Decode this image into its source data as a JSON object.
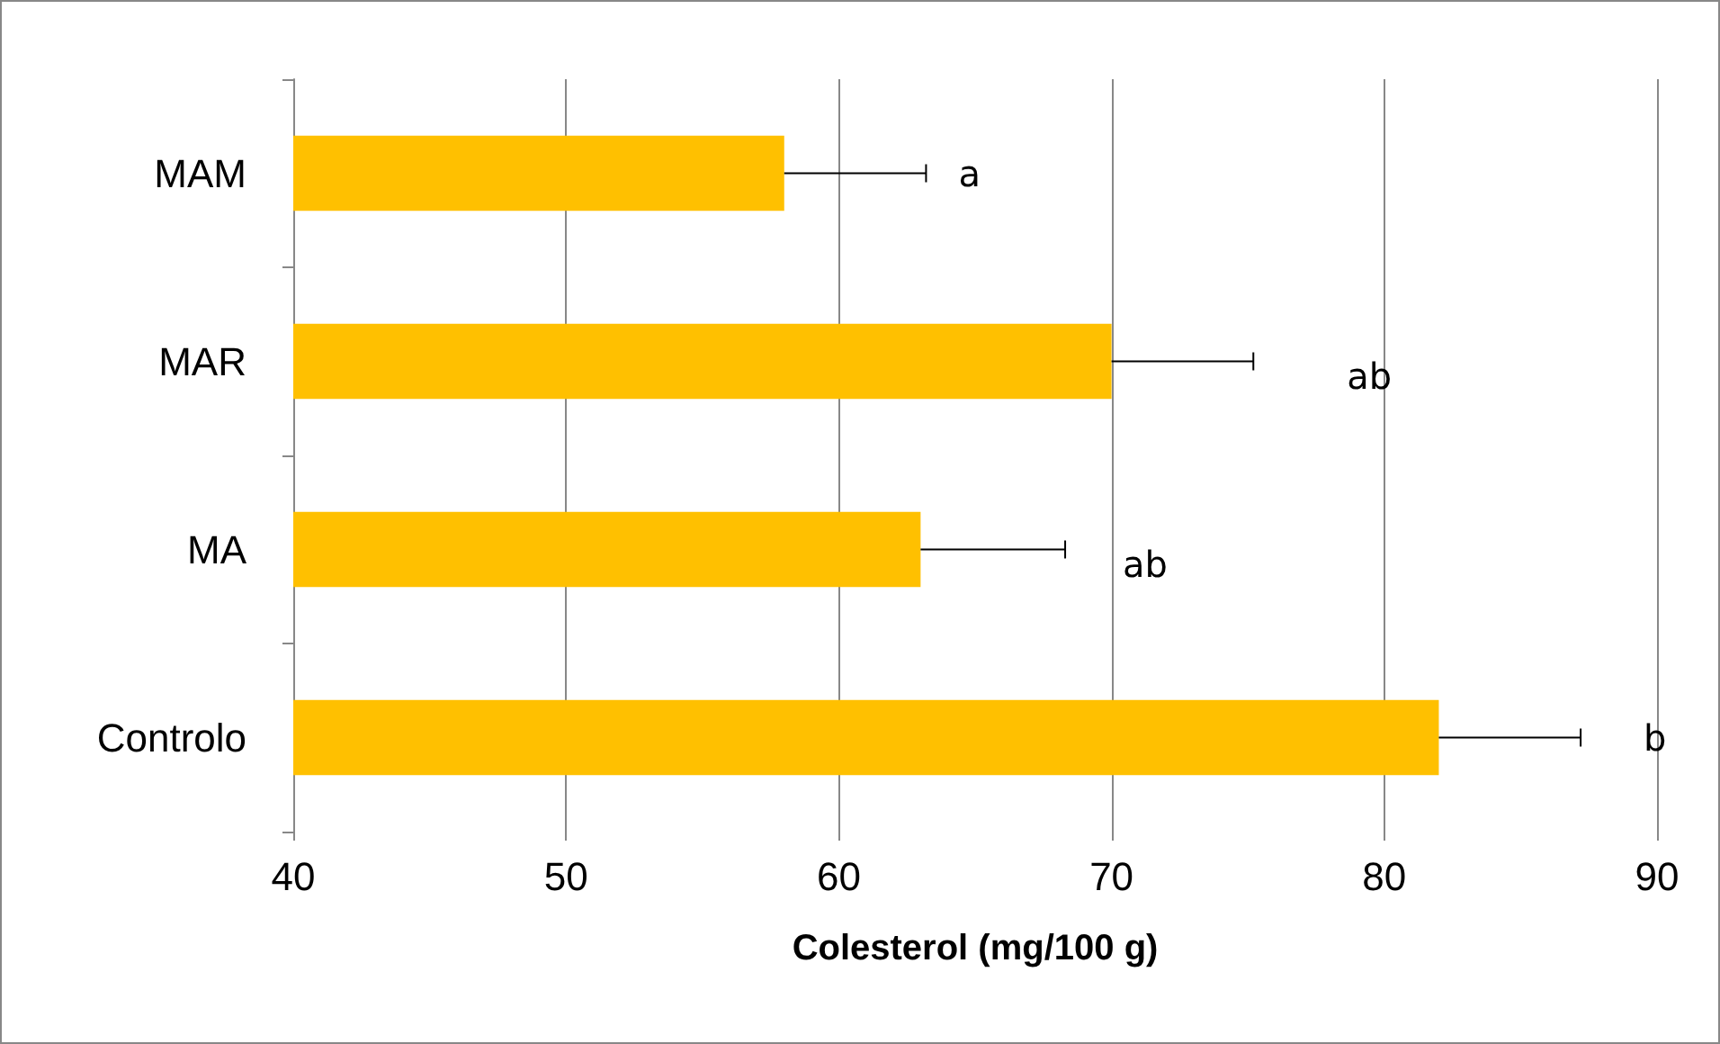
{
  "chart_data": {
    "type": "bar",
    "orientation": "horizontal",
    "xlabel": "Colesterol (mg/100 g)",
    "categories": [
      "MAM",
      "MAR",
      "MA",
      "Controlo"
    ],
    "values": [
      58,
      70,
      63,
      82
    ],
    "errors": [
      [
        58,
        63.2
      ],
      [
        70,
        75.2
      ],
      [
        63,
        68.3
      ],
      [
        82,
        87.2
      ]
    ],
    "color": "#ffc000",
    "xlim": [
      40,
      90
    ],
    "xticks": [
      40,
      50,
      60,
      70,
      80,
      90
    ],
    "grid": "x",
    "annotations": [
      "a",
      "ab",
      "ab",
      "b"
    ]
  }
}
